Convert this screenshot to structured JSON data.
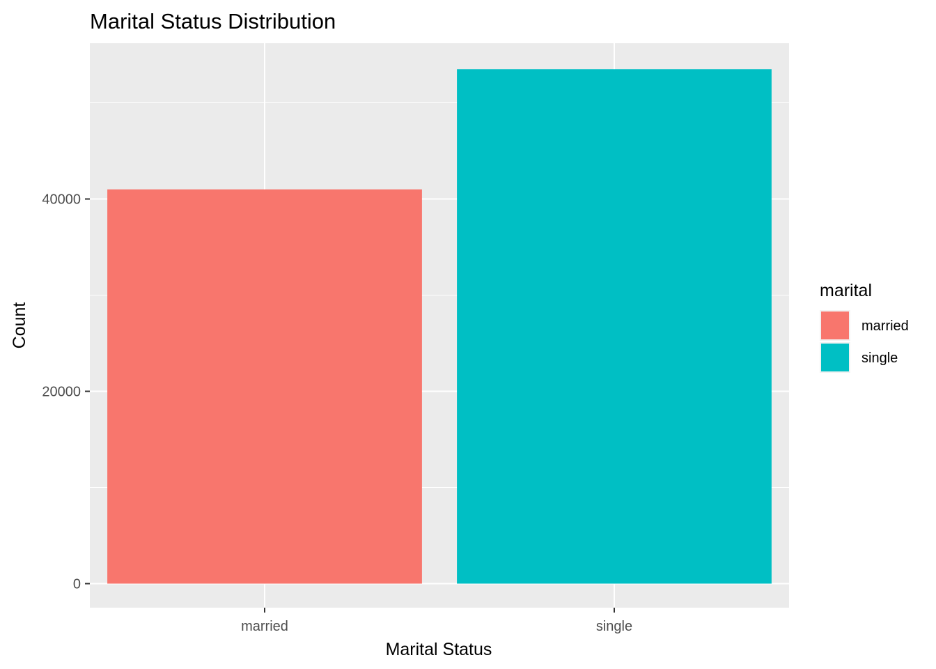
{
  "chart_data": {
    "type": "bar",
    "title": "Marital Status Distribution",
    "xlabel": "Marital Status",
    "ylabel": "Count",
    "categories": [
      "married",
      "single"
    ],
    "values": [
      41000,
      53500
    ],
    "colors": [
      "#F8766D",
      "#00BFC4"
    ],
    "ylim": [
      -2500,
      56200
    ],
    "y_ticks": [
      0,
      20000,
      40000
    ],
    "y_tick_labels": [
      "0",
      "20000",
      "40000"
    ],
    "y_minor_ticks": [
      10000,
      30000,
      50000
    ],
    "grid": true,
    "panel_background": "#EBEBEB",
    "grid_color": "#FFFFFF",
    "legend": {
      "title": "marital",
      "placement": "right",
      "entries": [
        "married",
        "single"
      ]
    }
  }
}
